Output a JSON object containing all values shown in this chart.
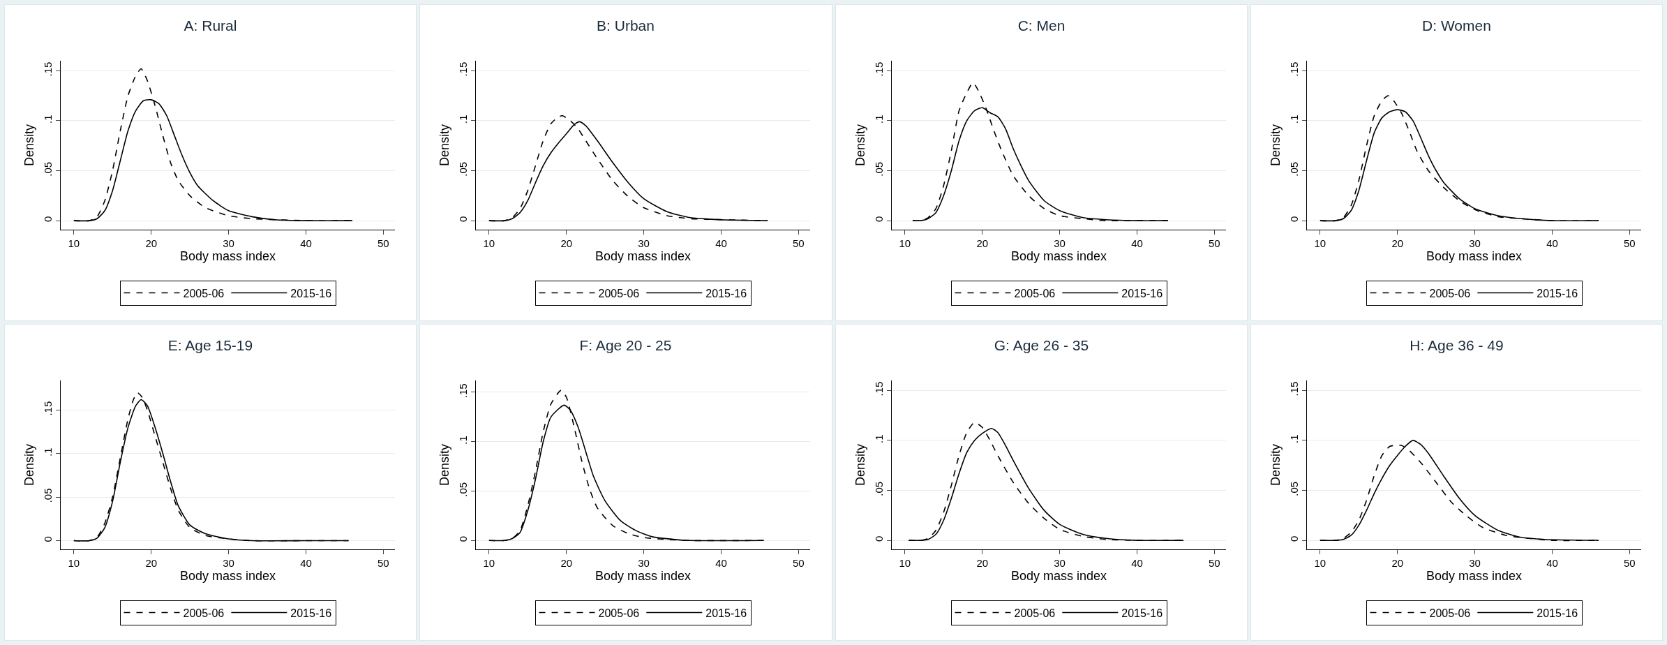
{
  "chart_data": [
    {
      "type": "line",
      "title": "A: Rural",
      "xlabel": "Body mass index",
      "ylabel": "Density",
      "xlim": [
        8.3,
        51.5
      ],
      "ylim": [
        -0.009,
        0.16
      ],
      "xticks": [
        10,
        20,
        30,
        40,
        50
      ],
      "yticks": [
        {
          "value": 0,
          "label": "0"
        },
        {
          "value": 0.05,
          "label": ".05"
        },
        {
          "value": 0.1,
          "label": ".1"
        },
        {
          "value": 0.15,
          "label": ".15"
        }
      ],
      "grid": "y",
      "legend": "bottom",
      "series": [
        {
          "name": "2005-06",
          "color": "#000000",
          "line_style": "dashed",
          "x": [
            10,
            12,
            13,
            14,
            15,
            16,
            17,
            18,
            18.7,
            19.5,
            20.5,
            21.5,
            22.5,
            23.5,
            25,
            27,
            30,
            33,
            36,
            40,
            46
          ],
          "values": [
            0,
            0,
            0.004,
            0.02,
            0.05,
            0.09,
            0.125,
            0.145,
            0.152,
            0.14,
            0.115,
            0.085,
            0.058,
            0.04,
            0.025,
            0.013,
            0.005,
            0.002,
            0.001,
            0,
            0
          ]
        },
        {
          "name": "2015-16",
          "color": "#000000",
          "line_style": "solid",
          "x": [
            10,
            12,
            13,
            14,
            15,
            16,
            17,
            18,
            19,
            20,
            21,
            22,
            23,
            24,
            25,
            26,
            28,
            30,
            33,
            36,
            40,
            46
          ],
          "values": [
            0,
            0,
            0.002,
            0.01,
            0.03,
            0.06,
            0.09,
            0.11,
            0.12,
            0.121,
            0.117,
            0.105,
            0.085,
            0.065,
            0.048,
            0.035,
            0.02,
            0.01,
            0.004,
            0.001,
            0,
            0
          ]
        }
      ]
    },
    {
      "type": "line",
      "title": "B: Urban",
      "xlabel": "Body mass index",
      "ylabel": "Density",
      "xlim": [
        8.3,
        51.5
      ],
      "ylim": [
        -0.009,
        0.16
      ],
      "xticks": [
        10,
        20,
        30,
        40,
        50
      ],
      "yticks": [
        {
          "value": 0,
          "label": "0"
        },
        {
          "value": 0.05,
          "label": ".05"
        },
        {
          "value": 0.1,
          "label": ".1"
        },
        {
          "value": 0.15,
          "label": ".15"
        }
      ],
      "grid": "y",
      "legend": "bottom",
      "series": [
        {
          "name": "2005-06",
          "color": "#000000",
          "line_style": "dashed",
          "x": [
            10,
            12,
            13,
            14,
            15,
            16,
            17,
            18,
            19,
            19.5,
            20.5,
            21.5,
            22.5,
            24,
            26,
            28,
            30,
            33,
            36,
            40,
            46
          ],
          "values": [
            0,
            0,
            0.003,
            0.012,
            0.03,
            0.055,
            0.08,
            0.097,
            0.104,
            0.105,
            0.1,
            0.092,
            0.08,
            0.062,
            0.04,
            0.024,
            0.013,
            0.005,
            0.002,
            0.001,
            0
          ]
        },
        {
          "name": "2015-16",
          "color": "#000000",
          "line_style": "solid",
          "x": [
            10,
            12,
            13,
            14,
            15,
            16,
            17,
            18,
            19,
            20,
            21,
            21.7,
            22.5,
            24,
            26,
            28,
            30,
            33,
            36,
            40,
            46
          ],
          "values": [
            0,
            0,
            0.002,
            0.008,
            0.02,
            0.038,
            0.055,
            0.068,
            0.078,
            0.087,
            0.096,
            0.099,
            0.095,
            0.08,
            0.058,
            0.038,
            0.022,
            0.009,
            0.003,
            0.001,
            0
          ]
        }
      ]
    },
    {
      "type": "line",
      "title": "C: Men",
      "xlabel": "Body mass index",
      "ylabel": "Density",
      "xlim": [
        8.3,
        51.5
      ],
      "ylim": [
        -0.009,
        0.16
      ],
      "xticks": [
        10,
        20,
        30,
        40,
        50
      ],
      "yticks": [
        {
          "value": 0,
          "label": "0"
        },
        {
          "value": 0.05,
          "label": ".05"
        },
        {
          "value": 0.1,
          "label": ".1"
        },
        {
          "value": 0.15,
          "label": ".15"
        }
      ],
      "grid": "y",
      "legend": "bottom",
      "series": [
        {
          "name": "2005-06",
          "color": "#000000",
          "line_style": "dashed",
          "x": [
            11,
            12,
            13,
            14,
            15,
            16,
            17,
            18,
            18.8,
            19.5,
            20.5,
            21.5,
            22.5,
            24,
            26,
            28,
            30,
            33,
            36,
            40,
            44
          ],
          "values": [
            0,
            0,
            0.003,
            0.012,
            0.035,
            0.07,
            0.11,
            0.128,
            0.138,
            0.13,
            0.112,
            0.09,
            0.07,
            0.045,
            0.025,
            0.012,
            0.005,
            0.002,
            0,
            0,
            0
          ]
        },
        {
          "name": "2015-16",
          "color": "#000000",
          "line_style": "solid",
          "x": [
            11,
            12,
            13,
            14,
            15,
            16,
            17,
            18,
            19,
            20,
            21,
            22,
            23,
            24,
            25,
            26,
            28,
            30,
            33,
            36,
            40,
            44
          ],
          "values": [
            0,
            0,
            0.002,
            0.008,
            0.025,
            0.05,
            0.08,
            0.1,
            0.11,
            0.113,
            0.108,
            0.104,
            0.092,
            0.072,
            0.055,
            0.04,
            0.02,
            0.01,
            0.003,
            0.001,
            0,
            0
          ]
        }
      ]
    },
    {
      "type": "line",
      "title": "D: Women",
      "xlabel": "Body mass index",
      "ylabel": "Density",
      "xlim": [
        8.3,
        51.5
      ],
      "ylim": [
        -0.009,
        0.16
      ],
      "xticks": [
        10,
        20,
        30,
        40,
        50
      ],
      "yticks": [
        {
          "value": 0,
          "label": "0"
        },
        {
          "value": 0.05,
          "label": ".05"
        },
        {
          "value": 0.1,
          "label": ".1"
        },
        {
          "value": 0.15,
          "label": ".15"
        }
      ],
      "grid": "y",
      "legend": "bottom",
      "series": [
        {
          "name": "2005-06",
          "color": "#000000",
          "line_style": "dashed",
          "x": [
            10,
            12,
            13,
            14,
            15,
            16,
            17,
            18,
            18.8,
            19.5,
            20.5,
            21.5,
            22.5,
            24,
            26,
            28,
            30,
            33,
            36,
            40,
            46
          ],
          "values": [
            0,
            0,
            0.003,
            0.015,
            0.04,
            0.075,
            0.105,
            0.12,
            0.125,
            0.12,
            0.108,
            0.09,
            0.07,
            0.05,
            0.033,
            0.02,
            0.011,
            0.004,
            0.002,
            0,
            0
          ]
        },
        {
          "name": "2015-16",
          "color": "#000000",
          "line_style": "solid",
          "x": [
            10,
            12,
            13,
            14,
            15,
            16,
            17,
            18,
            19,
            20,
            21,
            22,
            23,
            24,
            25,
            26,
            28,
            30,
            33,
            36,
            40,
            46
          ],
          "values": [
            0,
            0,
            0.002,
            0.01,
            0.03,
            0.06,
            0.088,
            0.103,
            0.109,
            0.111,
            0.109,
            0.1,
            0.083,
            0.065,
            0.05,
            0.038,
            0.022,
            0.012,
            0.005,
            0.002,
            0,
            0
          ]
        }
      ]
    },
    {
      "type": "line",
      "title": "E: Age 15-19",
      "xlabel": "Body mass index",
      "ylabel": "Density",
      "xlim": [
        8.3,
        51.5
      ],
      "ylim": [
        -0.01,
        0.184
      ],
      "xticks": [
        10,
        20,
        30,
        40,
        50
      ],
      "yticks": [
        {
          "value": 0,
          "label": "0"
        },
        {
          "value": 0.05,
          "label": ".05"
        },
        {
          "value": 0.1,
          "label": ".1"
        },
        {
          "value": 0.15,
          "label": ".15"
        }
      ],
      "grid": "y",
      "legend": "bottom",
      "series": [
        {
          "name": "2005-06",
          "color": "#000000",
          "line_style": "dashed",
          "x": [
            10,
            12,
            13,
            14,
            15,
            16,
            17,
            17.7,
            18.2,
            18.8,
            19.5,
            20.5,
            21.5,
            22.5,
            23.5,
            25,
            27,
            30,
            33,
            40,
            45.5
          ],
          "values": [
            0,
            0,
            0.004,
            0.02,
            0.05,
            0.095,
            0.14,
            0.162,
            0.17,
            0.165,
            0.15,
            0.12,
            0.09,
            0.06,
            0.035,
            0.015,
            0.006,
            0.002,
            0,
            0,
            0
          ]
        },
        {
          "name": "2015-16",
          "color": "#000000",
          "line_style": "solid",
          "x": [
            10,
            12,
            13,
            14,
            15,
            16,
            17,
            18,
            18.7,
            19.5,
            20.5,
            21.5,
            22.5,
            23.5,
            25,
            27,
            30,
            33,
            40,
            45.5
          ],
          "values": [
            0,
            0,
            0.003,
            0.015,
            0.045,
            0.09,
            0.13,
            0.155,
            0.162,
            0.155,
            0.13,
            0.1,
            0.068,
            0.04,
            0.018,
            0.008,
            0.002,
            0,
            0,
            0
          ]
        }
      ]
    },
    {
      "type": "line",
      "title": "F: Age 20 - 25",
      "xlabel": "Body mass index",
      "ylabel": "Density",
      "xlim": [
        8.3,
        51.5
      ],
      "ylim": [
        -0.009,
        0.162
      ],
      "xticks": [
        10,
        20,
        30,
        40,
        50
      ],
      "yticks": [
        {
          "value": 0,
          "label": "0"
        },
        {
          "value": 0.05,
          "label": ".05"
        },
        {
          "value": 0.1,
          "label": ".1"
        },
        {
          "value": 0.15,
          "label": ".15"
        }
      ],
      "grid": "y",
      "legend": "bottom",
      "series": [
        {
          "name": "2005-06",
          "color": "#000000",
          "line_style": "dashed",
          "x": [
            10,
            12,
            13,
            14,
            15,
            16,
            17,
            18,
            19.3,
            20,
            21,
            22,
            23,
            24,
            26,
            28,
            30,
            33,
            36,
            45.5
          ],
          "values": [
            0,
            0,
            0.002,
            0.01,
            0.035,
            0.07,
            0.11,
            0.138,
            0.152,
            0.145,
            0.115,
            0.08,
            0.052,
            0.033,
            0.015,
            0.007,
            0.003,
            0.001,
            0,
            0
          ]
        },
        {
          "name": "2015-16",
          "color": "#000000",
          "line_style": "solid",
          "x": [
            10,
            12,
            13,
            14,
            15,
            16,
            17,
            18,
            19.7,
            20.5,
            21.5,
            22.5,
            23.5,
            25,
            27,
            29,
            31,
            34,
            36,
            45.5
          ],
          "values": [
            0,
            0,
            0.002,
            0.008,
            0.03,
            0.062,
            0.1,
            0.125,
            0.137,
            0.132,
            0.115,
            0.09,
            0.065,
            0.04,
            0.02,
            0.01,
            0.004,
            0.001,
            0,
            0
          ]
        }
      ]
    },
    {
      "type": "line",
      "title": "G: Age 26 - 35",
      "xlabel": "Body mass index",
      "ylabel": "Density",
      "xlim": [
        8.3,
        51.5
      ],
      "ylim": [
        -0.009,
        0.16
      ],
      "xticks": [
        10,
        20,
        30,
        40,
        50
      ],
      "yticks": [
        {
          "value": 0,
          "label": "0"
        },
        {
          "value": 0.05,
          "label": ".05"
        },
        {
          "value": 0.1,
          "label": ".1"
        },
        {
          "value": 0.15,
          "label": ".15"
        }
      ],
      "grid": "y",
      "legend": "bottom",
      "series": [
        {
          "name": "2005-06",
          "color": "#000000",
          "line_style": "dashed",
          "x": [
            10.5,
            12,
            13,
            14,
            15,
            16,
            17,
            18,
            19,
            20,
            21,
            22,
            24,
            26,
            28,
            30,
            33,
            36,
            40,
            46
          ],
          "values": [
            0,
            0,
            0.002,
            0.01,
            0.028,
            0.055,
            0.085,
            0.108,
            0.118,
            0.113,
            0.1,
            0.085,
            0.058,
            0.037,
            0.022,
            0.011,
            0.004,
            0.001,
            0,
            0
          ]
        },
        {
          "name": "2015-16",
          "color": "#000000",
          "line_style": "solid",
          "x": [
            10.5,
            12,
            13,
            14,
            15,
            16,
            17,
            18,
            19,
            20,
            21.2,
            22,
            23,
            24,
            26,
            28,
            30,
            33,
            36,
            40,
            46
          ],
          "values": [
            0,
            0,
            0.001,
            0.006,
            0.02,
            0.042,
            0.067,
            0.088,
            0.1,
            0.107,
            0.112,
            0.108,
            0.095,
            0.08,
            0.052,
            0.03,
            0.016,
            0.006,
            0.002,
            0,
            0
          ]
        }
      ]
    },
    {
      "type": "line",
      "title": "H: Age 36 - 49",
      "xlabel": "Body mass index",
      "ylabel": "Density",
      "xlim": [
        8.3,
        51.5
      ],
      "ylim": [
        -0.009,
        0.16
      ],
      "xticks": [
        10,
        20,
        30,
        40,
        50
      ],
      "yticks": [
        {
          "value": 0,
          "label": "0"
        },
        {
          "value": 0.05,
          "label": ".05"
        },
        {
          "value": 0.1,
          "label": ".1"
        },
        {
          "value": 0.15,
          "label": ".15"
        }
      ],
      "grid": "y",
      "legend": "bottom",
      "series": [
        {
          "name": "2005-06",
          "color": "#000000",
          "line_style": "dashed",
          "x": [
            10,
            12,
            13,
            14,
            15,
            16,
            17,
            18,
            19,
            20.5,
            21.5,
            23,
            25,
            27,
            29,
            31,
            34,
            37,
            40,
            46
          ],
          "values": [
            0,
            0,
            0.002,
            0.008,
            0.02,
            0.04,
            0.065,
            0.085,
            0.094,
            0.095,
            0.09,
            0.078,
            0.058,
            0.038,
            0.024,
            0.013,
            0.005,
            0.002,
            0,
            0
          ]
        },
        {
          "name": "2015-16",
          "color": "#000000",
          "line_style": "solid",
          "x": [
            10,
            12,
            13,
            14,
            15,
            16,
            17,
            18,
            19,
            20,
            21,
            22,
            23,
            24,
            26,
            28,
            30,
            33,
            36,
            39,
            46
          ],
          "values": [
            0,
            0,
            0.001,
            0.005,
            0.015,
            0.03,
            0.047,
            0.062,
            0.075,
            0.085,
            0.094,
            0.1,
            0.096,
            0.087,
            0.064,
            0.042,
            0.025,
            0.01,
            0.003,
            0.001,
            0
          ]
        }
      ]
    }
  ]
}
